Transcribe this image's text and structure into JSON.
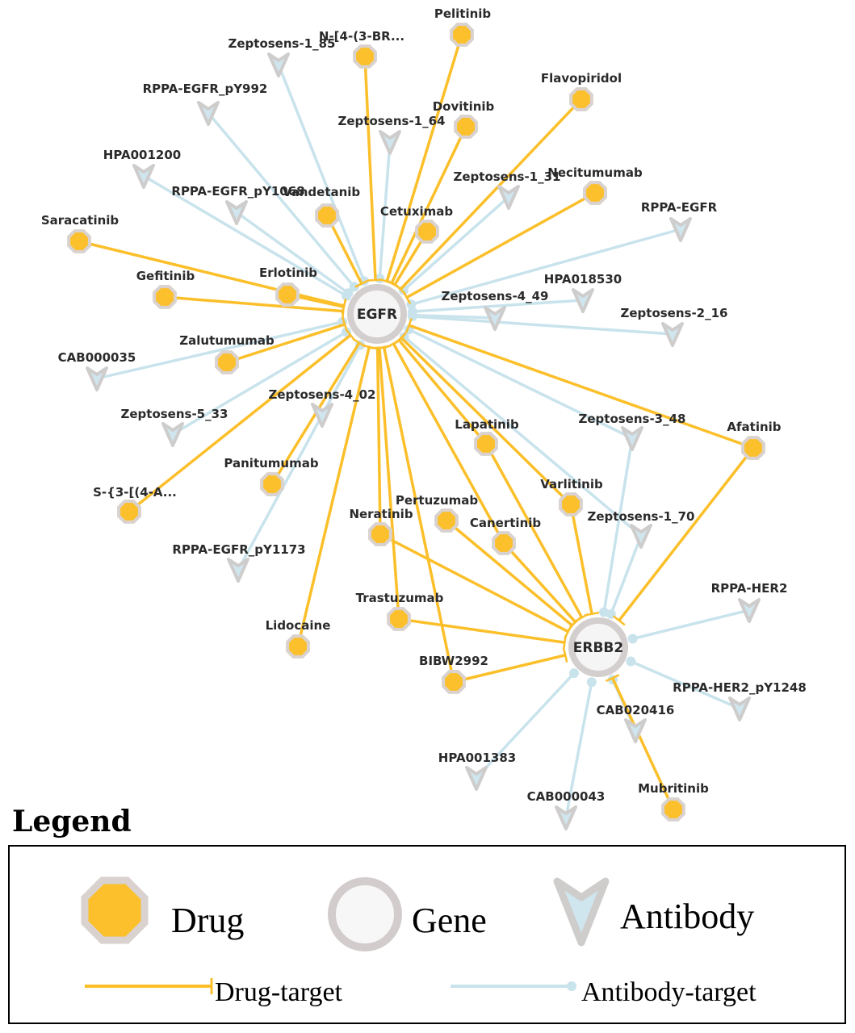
{
  "colors": {
    "drug": "#fcc02c",
    "drug_border": "#d9d2ce",
    "gene_fill": "#f5f5f5",
    "gene_border": "#d4cfcf",
    "antibody_fill": "#cfe6ee",
    "antibody_border": "#cfcccc",
    "drug_edge": "#fbbf2a",
    "antibody_edge": "#c9e3ec"
  },
  "nodes": [
    {
      "id": "EGFR",
      "type": "gene"
    },
    {
      "id": "ERBB2",
      "type": "gene"
    },
    {
      "id": "Pelitinib",
      "type": "drug"
    },
    {
      "id": "N-[4-(3-BR...",
      "type": "drug"
    },
    {
      "id": "Flavopiridol",
      "type": "drug"
    },
    {
      "id": "Dovitinib",
      "type": "drug"
    },
    {
      "id": "Necitumumab",
      "type": "drug"
    },
    {
      "id": "Vandetanib",
      "type": "drug"
    },
    {
      "id": "Cetuximab",
      "type": "drug"
    },
    {
      "id": "Saracatinib",
      "type": "drug"
    },
    {
      "id": "Gefitinib",
      "type": "drug"
    },
    {
      "id": "Erlotinib",
      "type": "drug"
    },
    {
      "id": "Zalutumumab",
      "type": "drug"
    },
    {
      "id": "Afatinib",
      "type": "drug"
    },
    {
      "id": "Lapatinib",
      "type": "drug"
    },
    {
      "id": "Panitumumab",
      "type": "drug"
    },
    {
      "id": "S-{3-[(4-A...",
      "type": "drug"
    },
    {
      "id": "Varlitinib",
      "type": "drug"
    },
    {
      "id": "Pertuzumab",
      "type": "drug"
    },
    {
      "id": "Canertinib",
      "type": "drug"
    },
    {
      "id": "Neratinib",
      "type": "drug"
    },
    {
      "id": "Trastuzumab",
      "type": "drug"
    },
    {
      "id": "Lidocaine",
      "type": "drug"
    },
    {
      "id": "BIBW2992",
      "type": "drug"
    },
    {
      "id": "Mubritinib",
      "type": "drug"
    },
    {
      "id": "Zeptosens-1_85",
      "type": "antibody"
    },
    {
      "id": "RPPA-EGFR_pY992",
      "type": "antibody"
    },
    {
      "id": "Zeptosens-1_64",
      "type": "antibody"
    },
    {
      "id": "HPA001200",
      "type": "antibody"
    },
    {
      "id": "RPPA-EGFR_pY1068",
      "type": "antibody"
    },
    {
      "id": "Zeptosens-1_31",
      "type": "antibody"
    },
    {
      "id": "RPPA-EGFR",
      "type": "antibody"
    },
    {
      "id": "HPA018530",
      "type": "antibody"
    },
    {
      "id": "Zeptosens-4_49",
      "type": "antibody"
    },
    {
      "id": "Zeptosens-2_16",
      "type": "antibody"
    },
    {
      "id": "CAB000035",
      "type": "antibody"
    },
    {
      "id": "Zeptosens-4_02",
      "type": "antibody"
    },
    {
      "id": "Zeptosens-5_33",
      "type": "antibody"
    },
    {
      "id": "Zeptosens-3_48",
      "type": "antibody"
    },
    {
      "id": "Zeptosens-1_70",
      "type": "antibody"
    },
    {
      "id": "RPPA-EGFR_pY1173",
      "type": "antibody"
    },
    {
      "id": "RPPA-HER2",
      "type": "antibody"
    },
    {
      "id": "RPPA-HER2_pY1248",
      "type": "antibody"
    },
    {
      "id": "CAB020416",
      "type": "antibody"
    },
    {
      "id": "HPA001383",
      "type": "antibody"
    },
    {
      "id": "CAB000043",
      "type": "antibody"
    }
  ],
  "edges": [
    [
      "Pelitinib",
      "EGFR",
      "drug"
    ],
    [
      "N-[4-(3-BR...",
      "EGFR",
      "drug"
    ],
    [
      "Flavopiridol",
      "EGFR",
      "drug"
    ],
    [
      "Dovitinib",
      "EGFR",
      "drug"
    ],
    [
      "Necitumumab",
      "EGFR",
      "drug"
    ],
    [
      "Vandetanib",
      "EGFR",
      "drug"
    ],
    [
      "Cetuximab",
      "EGFR",
      "drug"
    ],
    [
      "Saracatinib",
      "EGFR",
      "drug"
    ],
    [
      "Gefitinib",
      "EGFR",
      "drug"
    ],
    [
      "Erlotinib",
      "EGFR",
      "drug"
    ],
    [
      "Zalutumumab",
      "EGFR",
      "drug"
    ],
    [
      "Afatinib",
      "EGFR",
      "drug"
    ],
    [
      "Lapatinib",
      "EGFR",
      "drug"
    ],
    [
      "Panitumumab",
      "EGFR",
      "drug"
    ],
    [
      "S-{3-[(4-A...",
      "EGFR",
      "drug"
    ],
    [
      "Varlitinib",
      "EGFR",
      "drug"
    ],
    [
      "Canertinib",
      "EGFR",
      "drug"
    ],
    [
      "Neratinib",
      "EGFR",
      "drug"
    ],
    [
      "Trastuzumab",
      "EGFR",
      "drug"
    ],
    [
      "Lidocaine",
      "EGFR",
      "drug"
    ],
    [
      "BIBW2992",
      "EGFR",
      "drug"
    ],
    [
      "Afatinib",
      "ERBB2",
      "drug"
    ],
    [
      "Lapatinib",
      "ERBB2",
      "drug"
    ],
    [
      "Varlitinib",
      "ERBB2",
      "drug"
    ],
    [
      "Canertinib",
      "ERBB2",
      "drug"
    ],
    [
      "Pertuzumab",
      "ERBB2",
      "drug"
    ],
    [
      "Neratinib",
      "ERBB2",
      "drug"
    ],
    [
      "Trastuzumab",
      "ERBB2",
      "drug"
    ],
    [
      "BIBW2992",
      "ERBB2",
      "drug"
    ],
    [
      "Mubritinib",
      "ERBB2",
      "drug"
    ],
    [
      "Zeptosens-1_85",
      "EGFR",
      "antibody"
    ],
    [
      "RPPA-EGFR_pY992",
      "EGFR",
      "antibody"
    ],
    [
      "Zeptosens-1_64",
      "EGFR",
      "antibody"
    ],
    [
      "HPA001200",
      "EGFR",
      "antibody"
    ],
    [
      "RPPA-EGFR_pY1068",
      "EGFR",
      "antibody"
    ],
    [
      "Zeptosens-1_31",
      "EGFR",
      "antibody"
    ],
    [
      "RPPA-EGFR",
      "EGFR",
      "antibody"
    ],
    [
      "HPA018530",
      "EGFR",
      "antibody"
    ],
    [
      "Zeptosens-4_49",
      "EGFR",
      "antibody"
    ],
    [
      "Zeptosens-2_16",
      "EGFR",
      "antibody"
    ],
    [
      "CAB000035",
      "EGFR",
      "antibody"
    ],
    [
      "Zeptosens-4_02",
      "EGFR",
      "antibody"
    ],
    [
      "Zeptosens-5_33",
      "EGFR",
      "antibody"
    ],
    [
      "Zeptosens-3_48",
      "EGFR",
      "antibody"
    ],
    [
      "Zeptosens-1_70",
      "EGFR",
      "antibody"
    ],
    [
      "RPPA-EGFR_pY1173",
      "EGFR",
      "antibody"
    ],
    [
      "Zeptosens-3_48",
      "ERBB2",
      "antibody"
    ],
    [
      "Zeptosens-1_70",
      "ERBB2",
      "antibody"
    ],
    [
      "RPPA-HER2",
      "ERBB2",
      "antibody"
    ],
    [
      "RPPA-HER2_pY1248",
      "ERBB2",
      "antibody"
    ],
    [
      "CAB020416",
      "ERBB2",
      "antibody"
    ],
    [
      "HPA001383",
      "ERBB2",
      "antibody"
    ],
    [
      "CAB000043",
      "ERBB2",
      "antibody"
    ]
  ],
  "legend": {
    "title": "Legend",
    "drug": "Drug",
    "gene": "Gene",
    "antibody": "Antibody",
    "drug_target": "Drug-target",
    "antibody_target": "Antibody-target"
  }
}
